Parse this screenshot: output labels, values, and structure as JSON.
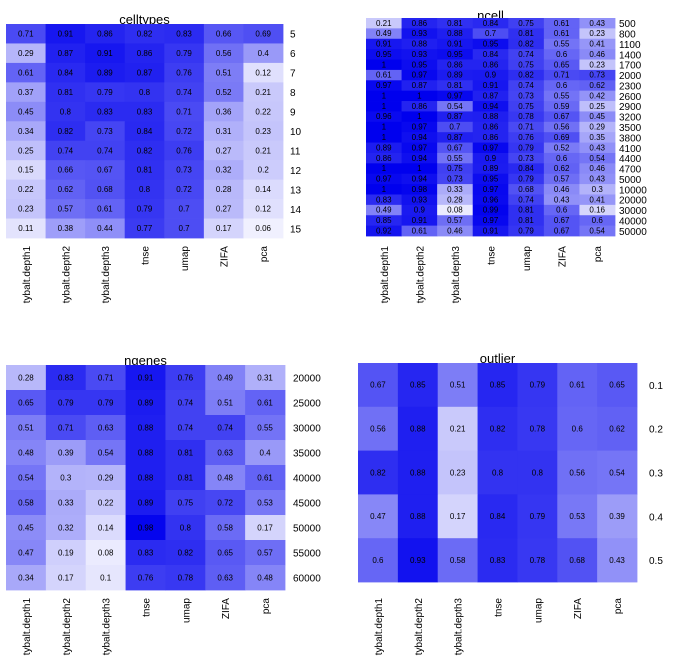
{
  "chart_data": [
    {
      "type": "heatmap",
      "title": "celltypes",
      "columns": [
        "tybalt.depth1",
        "tybalt.depth2",
        "tybalt.depth3",
        "tnse",
        "umap",
        "ZIFA",
        "pca"
      ],
      "rows": [
        "5",
        "6",
        "7",
        "8",
        "9",
        "10",
        "11",
        "12",
        "13",
        "14",
        "15"
      ],
      "values": [
        [
          "0.71",
          "0.91",
          "0.86",
          "0.82",
          "0.83",
          "0.66",
          "0.69"
        ],
        [
          "0.29",
          "0.87",
          "0.91",
          "0.86",
          "0.79",
          "0.56",
          "0.4"
        ],
        [
          "0.61",
          "0.84",
          "0.89",
          "0.87",
          "0.76",
          "0.51",
          "0.12"
        ],
        [
          "0.37",
          "0.81",
          "0.79",
          "0.8",
          "0.74",
          "0.52",
          "0.21"
        ],
        [
          "0.45",
          "0.8",
          "0.83",
          "0.83",
          "0.71",
          "0.36",
          "0.22"
        ],
        [
          "0.34",
          "0.82",
          "0.73",
          "0.84",
          "0.72",
          "0.31",
          "0.23"
        ],
        [
          "0.25",
          "0.74",
          "0.74",
          "0.82",
          "0.76",
          "0.27",
          "0.21"
        ],
        [
          "0.15",
          "0.66",
          "0.67",
          "0.81",
          "0.73",
          "0.32",
          "0.2"
        ],
        [
          "0.22",
          "0.62",
          "0.68",
          "0.8",
          "0.72",
          "0.28",
          "0.14"
        ],
        [
          "0.23",
          "0.57",
          "0.61",
          "0.79",
          "0.7",
          "0.27",
          "0.12"
        ],
        [
          "0.11",
          "0.38",
          "0.44",
          "0.77",
          "0.7",
          "0.17",
          "0.06"
        ]
      ]
    },
    {
      "type": "heatmap",
      "title": "ncell",
      "columns": [
        "tybalt.depth1",
        "tybalt.depth2",
        "tybalt.depth3",
        "tnse",
        "umap",
        "ZIFA",
        "pca"
      ],
      "rows": [
        "500",
        "800",
        "1100",
        "1400",
        "1700",
        "2000",
        "2300",
        "2600",
        "2900",
        "3200",
        "3500",
        "3800",
        "4100",
        "4400",
        "4700",
        "5000",
        "10000",
        "20000",
        "30000",
        "40000",
        "50000"
      ],
      "values": [
        [
          "0.21",
          "0.86",
          "0.81",
          "0.84",
          "0.75",
          "0.61",
          "0.43"
        ],
        [
          "0.49",
          "0.93",
          "0.88",
          "0.7",
          "0.81",
          "0.61",
          "0.23"
        ],
        [
          "0.91",
          "0.88",
          "0.91",
          "0.95",
          "0.82",
          "0.55",
          "0.41"
        ],
        [
          "0.95",
          "0.93",
          "0.95",
          "0.84",
          "0.74",
          "0.6",
          "0.46"
        ],
        [
          "1",
          "0.95",
          "0.86",
          "0.86",
          "0.75",
          "0.65",
          "0.23"
        ],
        [
          "0.61",
          "0.97",
          "0.89",
          "0.9",
          "0.82",
          "0.71",
          "0.73"
        ],
        [
          "0.97",
          "0.87",
          "0.81",
          "0.91",
          "0.74",
          "0.6",
          "0.62"
        ],
        [
          "1",
          "1",
          "0.97",
          "0.87",
          "0.73",
          "0.55",
          "0.42"
        ],
        [
          "1",
          "0.86",
          "0.54",
          "0.94",
          "0.75",
          "0.59",
          "0.25"
        ],
        [
          "0.96",
          "1",
          "0.87",
          "0.88",
          "0.78",
          "0.67",
          "0.45"
        ],
        [
          "1",
          "0.97",
          "0.7",
          "0.86",
          "0.71",
          "0.56",
          "0.29"
        ],
        [
          "1",
          "0.94",
          "0.87",
          "0.86",
          "0.76",
          "0.69",
          "0.35"
        ],
        [
          "0.89",
          "0.97",
          "0.67",
          "0.97",
          "0.79",
          "0.52",
          "0.43"
        ],
        [
          "0.86",
          "0.94",
          "0.55",
          "0.9",
          "0.73",
          "0.6",
          "0.54"
        ],
        [
          "1",
          "1",
          "0.75",
          "0.89",
          "0.84",
          "0.62",
          "0.46"
        ],
        [
          "0.97",
          "0.94",
          "0.73",
          "0.95",
          "0.79",
          "0.57",
          "0.43"
        ],
        [
          "1",
          "0.98",
          "0.33",
          "0.97",
          "0.68",
          "0.46",
          "0.3"
        ],
        [
          "0.83",
          "0.93",
          "0.28",
          "0.96",
          "0.74",
          "0.43",
          "0.41"
        ],
        [
          "0.49",
          "0.9",
          "0.08",
          "0.99",
          "0.81",
          "0.6",
          "0.16"
        ],
        [
          "0.85",
          "0.91",
          "0.57",
          "0.97",
          "0.81",
          "0.67",
          "0.6"
        ],
        [
          "0.92",
          "0.61",
          "0.46",
          "0.91",
          "0.79",
          "0.67",
          "0.54"
        ]
      ]
    },
    {
      "type": "heatmap",
      "title": "ngenes",
      "columns": [
        "tybalt.depth1",
        "tybalt.depth2",
        "tybalt.depth3",
        "tnse",
        "umap",
        "ZIFA",
        "pca"
      ],
      "rows": [
        "20000",
        "25000",
        "30000",
        "35000",
        "40000",
        "45000",
        "50000",
        "55000",
        "60000"
      ],
      "values": [
        [
          "0.28",
          "0.83",
          "0.71",
          "0.91",
          "0.76",
          "0.49",
          "0.31"
        ],
        [
          "0.65",
          "0.79",
          "0.79",
          "0.89",
          "0.74",
          "0.51",
          "0.61"
        ],
        [
          "0.51",
          "0.71",
          "0.63",
          "0.88",
          "0.74",
          "0.74",
          "0.55"
        ],
        [
          "0.48",
          "0.39",
          "0.54",
          "0.88",
          "0.81",
          "0.63",
          "0.4"
        ],
        [
          "0.54",
          "0.3",
          "0.29",
          "0.88",
          "0.81",
          "0.48",
          "0.61"
        ],
        [
          "0.58",
          "0.33",
          "0.22",
          "0.89",
          "0.75",
          "0.72",
          "0.53"
        ],
        [
          "0.45",
          "0.32",
          "0.14",
          "0.98",
          "0.8",
          "0.58",
          "0.17"
        ],
        [
          "0.47",
          "0.19",
          "0.08",
          "0.83",
          "0.82",
          "0.65",
          "0.57"
        ],
        [
          "0.34",
          "0.17",
          "0.1",
          "0.76",
          "0.78",
          "0.63",
          "0.48"
        ]
      ]
    },
    {
      "type": "heatmap",
      "title": "outlier",
      "columns": [
        "tybalt.depth1",
        "tybalt.depth2",
        "tybalt.depth3",
        "tnse",
        "umap",
        "ZIFA",
        "pca"
      ],
      "rows": [
        "0.1",
        "0.2",
        "0.3",
        "0.4",
        "0.5"
      ],
      "values": [
        [
          "0.67",
          "0.85",
          "0.51",
          "0.85",
          "0.79",
          "0.61",
          "0.65"
        ],
        [
          "0.56",
          "0.88",
          "0.21",
          "0.82",
          "0.78",
          "0.6",
          "0.62"
        ],
        [
          "0.82",
          "0.88",
          "0.23",
          "0.8",
          "0.8",
          "0.56",
          "0.54"
        ],
        [
          "0.47",
          "0.88",
          "0.17",
          "0.84",
          "0.79",
          "0.53",
          "0.39"
        ],
        [
          "0.6",
          "0.93",
          "0.58",
          "0.83",
          "0.78",
          "0.68",
          "0.43"
        ]
      ]
    }
  ],
  "colors": {
    "low": "#ffffff",
    "high": "#0000ee",
    "text": "#000000"
  }
}
